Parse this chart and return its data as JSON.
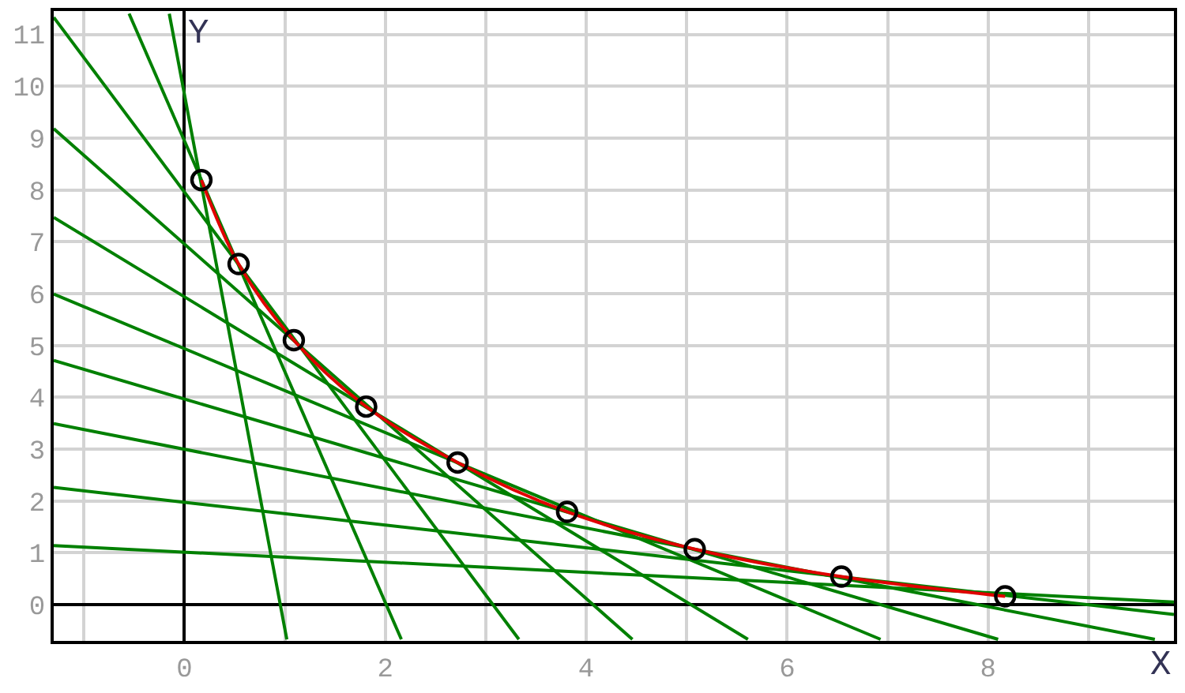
{
  "chart_data": {
    "type": "line",
    "xlabel": "X",
    "ylabel": "Y",
    "xlim": [
      -1.3,
      9.85
    ],
    "ylim": [
      -0.7,
      11.45
    ],
    "xticks": [
      {
        "value": -1,
        "label": null
      },
      0,
      {
        "value": 1,
        "label": null
      },
      2,
      {
        "value": 3,
        "label": null
      },
      4,
      {
        "value": 5,
        "label": null
      },
      6,
      {
        "value": 7,
        "label": null
      },
      8,
      {
        "value": 9,
        "label": null
      }
    ],
    "yticks": [
      0,
      1,
      2,
      3,
      4,
      5,
      6,
      7,
      8,
      9,
      10,
      11
    ],
    "grid": true,
    "line_style": "solid",
    "series": [
      {
        "type": "line",
        "color": "#008000",
        "x": [
          -0.15,
          1.02
        ],
        "values": [
          11.4,
          -0.67
        ]
      },
      {
        "type": "line",
        "color": "#008000",
        "x": [
          -0.55,
          2.16
        ],
        "values": [
          11.4,
          -0.67
        ]
      },
      {
        "type": "line",
        "color": "#008000",
        "x": [
          -1.3,
          3.33
        ],
        "values": [
          11.33,
          -0.67
        ]
      },
      {
        "type": "line",
        "color": "#008000",
        "x": [
          -1.3,
          4.46
        ],
        "values": [
          9.18,
          -0.67
        ]
      },
      {
        "type": "line",
        "color": "#008000",
        "x": [
          -1.3,
          5.61
        ],
        "values": [
          7.47,
          -0.67
        ]
      },
      {
        "type": "line",
        "color": "#008000",
        "x": [
          -1.3,
          6.93
        ],
        "values": [
          5.99,
          -0.67
        ]
      },
      {
        "type": "line",
        "color": "#008000",
        "x": [
          -1.3,
          8.1
        ],
        "values": [
          4.71,
          -0.67
        ]
      },
      {
        "type": "line",
        "color": "#008000",
        "x": [
          -1.3,
          9.66
        ],
        "values": [
          3.49,
          -0.67
        ]
      },
      {
        "type": "line",
        "color": "#008000",
        "x": [
          -1.3,
          9.85
        ],
        "values": [
          2.26,
          -0.19
        ]
      },
      {
        "type": "line",
        "color": "#008000",
        "x": [
          -1.3,
          9.85
        ],
        "values": [
          1.14,
          0.05
        ]
      },
      {
        "color": "#e00000",
        "marker": "none",
        "x": [
          0.17,
          0.54,
          1.09,
          1.81,
          2.72,
          3.81,
          5.08,
          6.54,
          8.17
        ],
        "values": [
          8.19,
          6.57,
          5.1,
          3.82,
          2.74,
          1.79,
          1.07,
          0.54,
          0.16
        ]
      },
      {
        "type": "scatter",
        "color": "#000000",
        "marker": "circle",
        "x": [
          0.17,
          0.54,
          1.09,
          1.81,
          2.72,
          3.81,
          5.08,
          6.54,
          8.17
        ],
        "values": [
          8.19,
          6.57,
          5.1,
          3.82,
          2.74,
          1.79,
          1.07,
          0.54,
          0.16
        ]
      }
    ]
  }
}
